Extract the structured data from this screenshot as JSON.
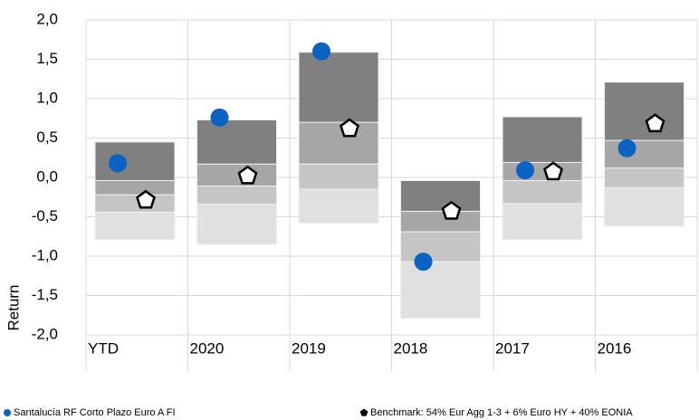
{
  "chart_data": {
    "type": "quartile",
    "y_label": "Return",
    "categories": [
      "YTD",
      "2020",
      "2019",
      "2018",
      "2017",
      "2016"
    ],
    "bands": [
      [
        -0.79,
        -0.44,
        -0.22,
        -0.04,
        0.45
      ],
      [
        -0.85,
        -0.34,
        -0.11,
        0.17,
        0.73
      ],
      [
        -0.58,
        -0.15,
        0.17,
        0.7,
        1.59
      ],
      [
        -1.79,
        -1.07,
        -0.69,
        -0.43,
        -0.04
      ],
      [
        -0.79,
        -0.33,
        -0.04,
        0.19,
        0.77
      ],
      [
        -0.62,
        -0.13,
        0.12,
        0.47,
        1.21
      ]
    ],
    "band_colors": [
      "#e0e0e0",
      "#c5c5c5",
      "#a6a6a6",
      "#808080"
    ],
    "series": [
      {
        "name": "Santalucía RF Corto Plazo Euro A FI",
        "color": "#0a63c2",
        "marker": "circle",
        "values": [
          0.18,
          0.76,
          1.6,
          -1.07,
          0.09,
          0.37
        ]
      },
      {
        "name": "Benchmark: 54% Eur Agg 1-3 + 6% Euro HY + 40% EONIA",
        "color": "#000000",
        "marker": "pentagon",
        "values": [
          -0.29,
          0.02,
          0.62,
          -0.43,
          0.07,
          0.68
        ]
      }
    ],
    "ylim": [
      -2.0,
      2.0
    ],
    "yticks": [
      {
        "value": -2.0,
        "label": "-2,0"
      },
      {
        "value": -1.5,
        "label": "-1,5"
      },
      {
        "value": -1.0,
        "label": "-1,0"
      },
      {
        "value": -0.5,
        "label": "-0,5"
      },
      {
        "value": 0.0,
        "label": "0,0"
      },
      {
        "value": 0.5,
        "label": "0,5"
      },
      {
        "value": 1.0,
        "label": "1,0"
      },
      {
        "value": 1.5,
        "label": "1,5"
      },
      {
        "value": 2.0,
        "label": "2,0"
      }
    ],
    "grid": true
  }
}
